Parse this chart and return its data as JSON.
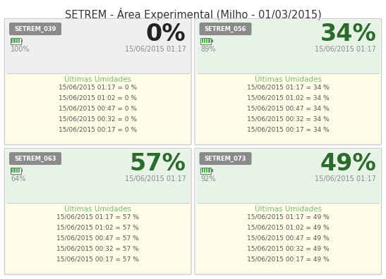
{
  "title": "SETREM - Área Experimental (Milho - 01/03/2015)",
  "panels": [
    {
      "id": "SETREM_039",
      "humidity": "0%",
      "battery": "100%",
      "datetime": "15/06/2015 01:17",
      "bg_top": "#efefef",
      "bg_bottom": "#fefee8",
      "humidity_color": "#222222",
      "records": [
        "15/06/2015 01:17 = 0 %",
        "15/06/2015 01:02 = 0 %",
        "15/06/2015 00:47 = 0 %",
        "15/06/2015 00:32 = 0 %",
        "15/06/2015 00:17 = 0 %"
      ]
    },
    {
      "id": "SETREM_056",
      "humidity": "34%",
      "battery": "89%",
      "datetime": "15/06/2015 01:17",
      "bg_top": "#e8f3e8",
      "bg_bottom": "#fefee8",
      "humidity_color": "#2d6a2d",
      "records": [
        "15/06/2015 01:17 = 34 %",
        "15/06/2015 01:02 = 34 %",
        "15/06/2015 00:47 = 34 %",
        "15/06/2015 00:32 = 34 %",
        "15/06/2015 00:17 = 34 %"
      ]
    },
    {
      "id": "SETREM_063",
      "humidity": "57%",
      "battery": "64%",
      "datetime": "15/06/2015 01:17",
      "bg_top": "#e8f3e8",
      "bg_bottom": "#fefee8",
      "humidity_color": "#2d6a2d",
      "records": [
        "15/06/2015 01:17 = 57 %",
        "15/06/2015 01:02 = 57 %",
        "15/06/2015 00:47 = 57 %",
        "15/06/2015 00:32 = 57 %",
        "15/06/2015 00:17 = 57 %"
      ]
    },
    {
      "id": "SETREM_073",
      "humidity": "49%",
      "battery": "92%",
      "datetime": "15/06/2015 01:17",
      "bg_top": "#e8f3e8",
      "bg_bottom": "#fefee8",
      "humidity_color": "#2d6a2d",
      "records": [
        "15/06/2015 01:17 = 49 %",
        "15/06/2015 01:02 = 49 %",
        "15/06/2015 00:47 = 49 %",
        "15/06/2015 00:32 = 49 %",
        "15/06/2015 00:17 = 49 %"
      ]
    }
  ],
  "title_fontsize": 10.5,
  "bg_color": "#ffffff",
  "border_color": "#cccccc",
  "label_color": "#888888",
  "record_color": "#555555",
  "header_label_color": "#7ab87a",
  "id_bg_color": "#8a8a8a",
  "id_text_color": "#ffffff"
}
